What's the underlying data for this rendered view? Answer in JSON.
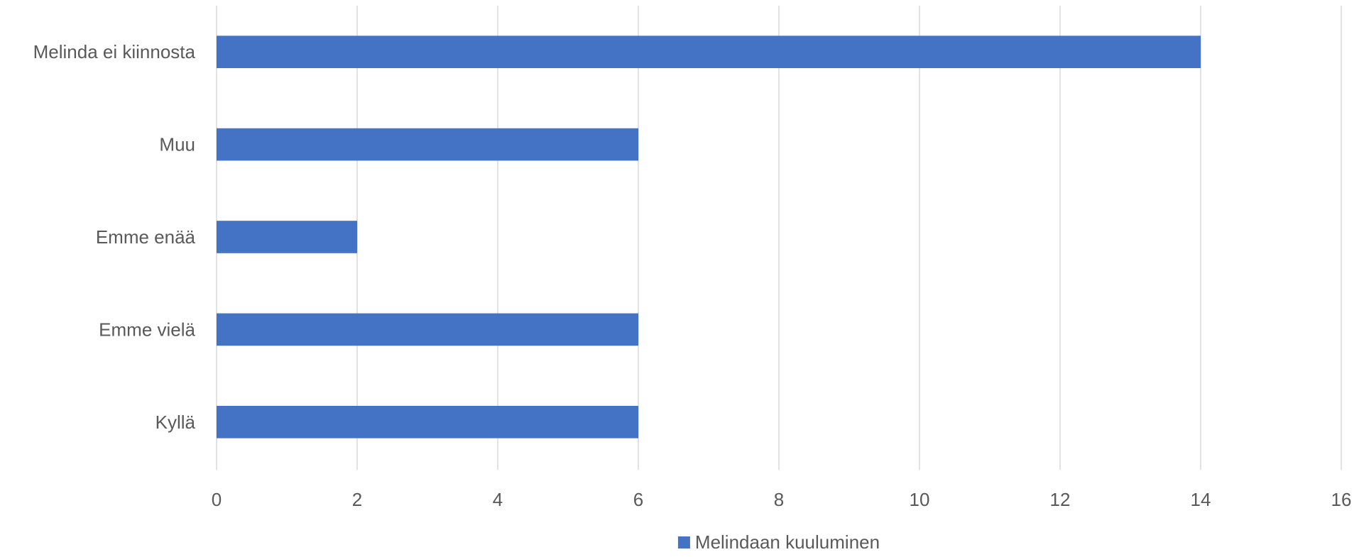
{
  "chart_data": {
    "type": "bar",
    "orientation": "horizontal",
    "categories": [
      "Melinda ei kiinnosta",
      "Muu",
      "Emme enää",
      "Emme vielä",
      "Kyllä"
    ],
    "series": [
      {
        "name": "Melindaan kuuluminen",
        "color": "#4472C4",
        "values": [
          14,
          6,
          2,
          6,
          6
        ]
      }
    ],
    "xlim": [
      0,
      16
    ],
    "xticks": [
      0,
      2,
      4,
      6,
      8,
      10,
      12,
      14,
      16
    ],
    "grid": "vertical",
    "legend": "bottom"
  },
  "legend": {
    "label": "Melindaan kuuluminen"
  }
}
